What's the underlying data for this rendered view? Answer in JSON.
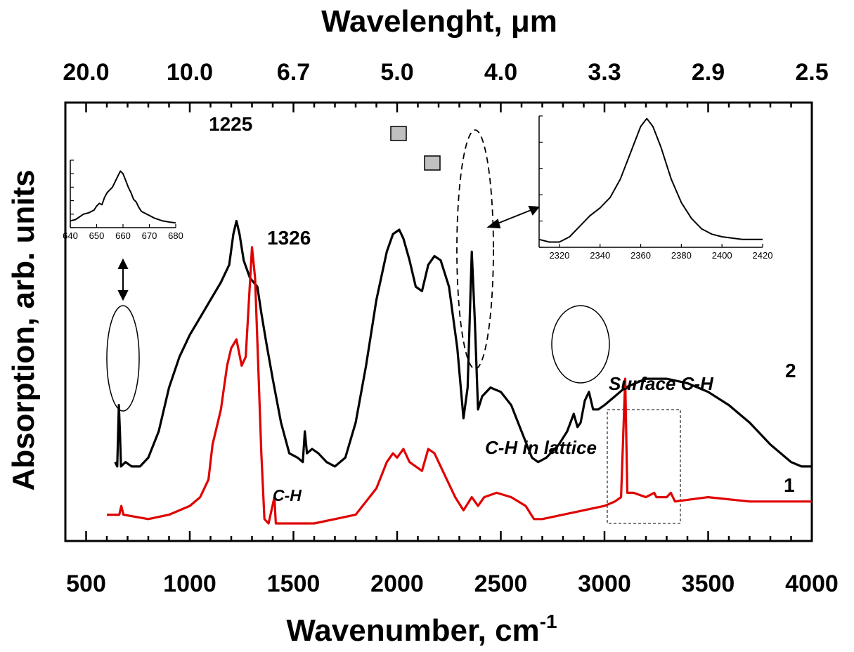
{
  "chart_data": {
    "type": "line",
    "title": "",
    "xlabel": "Wavenumber, cm",
    "xlabel_sup": "-1",
    "ylabel": "Absorption, arb. units",
    "top_axis_label": "Wavelenght, μm",
    "xlim": [
      400,
      4000
    ],
    "x_ticks": [
      500,
      1000,
      1500,
      2000,
      2500,
      3000,
      3500,
      4000
    ],
    "top_ticks": [
      {
        "label": "20.0",
        "at_wavenumber": 500
      },
      {
        "label": "10.0",
        "at_wavenumber": 1000
      },
      {
        "label": "6.7",
        "at_wavenumber": 1500
      },
      {
        "label": "5.0",
        "at_wavenumber": 2000
      },
      {
        "label": "4.0",
        "at_wavenumber": 2500
      },
      {
        "label": "3.3",
        "at_wavenumber": 3000
      },
      {
        "label": "2.9",
        "at_wavenumber": 3500
      },
      {
        "label": "2.5",
        "at_wavenumber": 4000
      }
    ],
    "ylim": [
      0,
      1
    ],
    "grid": false,
    "series": [
      {
        "name": "2",
        "color": "#000000",
        "points": [
          [
            640,
            0.18
          ],
          [
            650,
            0.17
          ],
          [
            658,
            0.31
          ],
          [
            663,
            0.25
          ],
          [
            668,
            0.17
          ],
          [
            690,
            0.18
          ],
          [
            720,
            0.17
          ],
          [
            760,
            0.17
          ],
          [
            800,
            0.19
          ],
          [
            850,
            0.25
          ],
          [
            900,
            0.35
          ],
          [
            950,
            0.42
          ],
          [
            1000,
            0.47
          ],
          [
            1050,
            0.51
          ],
          [
            1100,
            0.55
          ],
          [
            1150,
            0.59
          ],
          [
            1190,
            0.63
          ],
          [
            1210,
            0.7
          ],
          [
            1225,
            0.73
          ],
          [
            1240,
            0.7
          ],
          [
            1260,
            0.64
          ],
          [
            1290,
            0.6
          ],
          [
            1326,
            0.58
          ],
          [
            1345,
            0.52
          ],
          [
            1370,
            0.45
          ],
          [
            1400,
            0.37
          ],
          [
            1440,
            0.27
          ],
          [
            1480,
            0.2
          ],
          [
            1520,
            0.19
          ],
          [
            1545,
            0.18
          ],
          [
            1555,
            0.25
          ],
          [
            1565,
            0.2
          ],
          [
            1590,
            0.21
          ],
          [
            1620,
            0.2
          ],
          [
            1660,
            0.18
          ],
          [
            1700,
            0.17
          ],
          [
            1750,
            0.19
          ],
          [
            1800,
            0.27
          ],
          [
            1850,
            0.4
          ],
          [
            1900,
            0.55
          ],
          [
            1950,
            0.66
          ],
          [
            1980,
            0.7
          ],
          [
            2010,
            0.71
          ],
          [
            2030,
            0.69
          ],
          [
            2060,
            0.64
          ],
          [
            2090,
            0.58
          ],
          [
            2120,
            0.57
          ],
          [
            2150,
            0.63
          ],
          [
            2180,
            0.65
          ],
          [
            2210,
            0.64
          ],
          [
            2250,
            0.58
          ],
          [
            2290,
            0.44
          ],
          [
            2320,
            0.28
          ],
          [
            2340,
            0.35
          ],
          [
            2360,
            0.66
          ],
          [
            2375,
            0.5
          ],
          [
            2390,
            0.3
          ],
          [
            2410,
            0.33
          ],
          [
            2450,
            0.35
          ],
          [
            2500,
            0.34
          ],
          [
            2550,
            0.31
          ],
          [
            2600,
            0.25
          ],
          [
            2650,
            0.19
          ],
          [
            2680,
            0.18
          ],
          [
            2720,
            0.19
          ],
          [
            2780,
            0.22
          ],
          [
            2820,
            0.25
          ],
          [
            2852,
            0.29
          ],
          [
            2870,
            0.26
          ],
          [
            2885,
            0.27
          ],
          [
            2905,
            0.32
          ],
          [
            2925,
            0.34
          ],
          [
            2945,
            0.3
          ],
          [
            2970,
            0.3
          ],
          [
            3000,
            0.31
          ],
          [
            3050,
            0.33
          ],
          [
            3100,
            0.35
          ],
          [
            3200,
            0.37
          ],
          [
            3300,
            0.37
          ],
          [
            3400,
            0.36
          ],
          [
            3500,
            0.34
          ],
          [
            3600,
            0.31
          ],
          [
            3700,
            0.27
          ],
          [
            3800,
            0.22
          ],
          [
            3900,
            0.18
          ],
          [
            3950,
            0.17
          ],
          [
            4000,
            0.17
          ]
        ]
      },
      {
        "name": "1",
        "color": "#e00000",
        "points": [
          [
            600,
            0.06
          ],
          [
            660,
            0.06
          ],
          [
            670,
            0.08
          ],
          [
            680,
            0.06
          ],
          [
            800,
            0.05
          ],
          [
            900,
            0.06
          ],
          [
            1000,
            0.08
          ],
          [
            1050,
            0.1
          ],
          [
            1090,
            0.14
          ],
          [
            1110,
            0.22
          ],
          [
            1150,
            0.3
          ],
          [
            1180,
            0.4
          ],
          [
            1200,
            0.44
          ],
          [
            1225,
            0.46
          ],
          [
            1250,
            0.4
          ],
          [
            1270,
            0.42
          ],
          [
            1300,
            0.67
          ],
          [
            1315,
            0.6
          ],
          [
            1330,
            0.4
          ],
          [
            1345,
            0.2
          ],
          [
            1360,
            0.05
          ],
          [
            1380,
            0.04
          ],
          [
            1408,
            0.1
          ],
          [
            1415,
            0.04
          ],
          [
            1500,
            0.04
          ],
          [
            1600,
            0.04
          ],
          [
            1700,
            0.05
          ],
          [
            1800,
            0.06
          ],
          [
            1900,
            0.12
          ],
          [
            1950,
            0.18
          ],
          [
            1980,
            0.2
          ],
          [
            2000,
            0.19
          ],
          [
            2030,
            0.21
          ],
          [
            2060,
            0.18
          ],
          [
            2090,
            0.17
          ],
          [
            2120,
            0.16
          ],
          [
            2150,
            0.21
          ],
          [
            2180,
            0.2
          ],
          [
            2220,
            0.16
          ],
          [
            2280,
            0.1
          ],
          [
            2320,
            0.07
          ],
          [
            2360,
            0.1
          ],
          [
            2390,
            0.08
          ],
          [
            2420,
            0.1
          ],
          [
            2480,
            0.11
          ],
          [
            2550,
            0.1
          ],
          [
            2620,
            0.08
          ],
          [
            2660,
            0.05
          ],
          [
            2700,
            0.05
          ],
          [
            2800,
            0.06
          ],
          [
            2900,
            0.07
          ],
          [
            3000,
            0.08
          ],
          [
            3050,
            0.09
          ],
          [
            3080,
            0.1
          ],
          [
            3100,
            0.37
          ],
          [
            3110,
            0.11
          ],
          [
            3140,
            0.11
          ],
          [
            3200,
            0.1
          ],
          [
            3240,
            0.11
          ],
          [
            3250,
            0.1
          ],
          [
            3300,
            0.1
          ],
          [
            3320,
            0.11
          ],
          [
            3340,
            0.09
          ],
          [
            3500,
            0.1
          ],
          [
            3700,
            0.09
          ],
          [
            3800,
            0.09
          ],
          [
            3900,
            0.09
          ],
          [
            4000,
            0.09
          ]
        ]
      }
    ],
    "series_labels": [
      {
        "text": "2",
        "series": "2"
      },
      {
        "text": "1",
        "series": "1"
      }
    ],
    "annotations": [
      {
        "text": "1225",
        "style": "bold"
      },
      {
        "text": "1326",
        "style": "bold"
      },
      {
        "text": "C-H",
        "style": "bold-italic"
      },
      {
        "text": "C-H in lattice",
        "style": "bold-italic"
      },
      {
        "text": "Surface C-H",
        "style": "bold-italic"
      }
    ],
    "insets": [
      {
        "id": "left",
        "xlim": [
          640,
          680
        ],
        "x_ticks": [
          "640",
          "650",
          "660",
          "670",
          "680"
        ],
        "points": [
          [
            640,
            0.1
          ],
          [
            642,
            0.12
          ],
          [
            645,
            0.2
          ],
          [
            647,
            0.22
          ],
          [
            649,
            0.26
          ],
          [
            650,
            0.32
          ],
          [
            651,
            0.36
          ],
          [
            652,
            0.34
          ],
          [
            653,
            0.45
          ],
          [
            654,
            0.52
          ],
          [
            655,
            0.56
          ],
          [
            656,
            0.6
          ],
          [
            657,
            0.68
          ],
          [
            658,
            0.76
          ],
          [
            659,
            0.84
          ],
          [
            660,
            0.8
          ],
          [
            661,
            0.7
          ],
          [
            662,
            0.6
          ],
          [
            663,
            0.52
          ],
          [
            664,
            0.42
          ],
          [
            665,
            0.38
          ],
          [
            666,
            0.3
          ],
          [
            667,
            0.24
          ],
          [
            668,
            0.22
          ],
          [
            670,
            0.18
          ],
          [
            672,
            0.14
          ],
          [
            675,
            0.1
          ],
          [
            678,
            0.08
          ],
          [
            680,
            0.07
          ]
        ]
      },
      {
        "id": "right",
        "xlim": [
          2310,
          2420
        ],
        "x_ticks": [
          "2320",
          "2340",
          "2360",
          "2380",
          "2400",
          "2420"
        ],
        "points": [
          [
            2310,
            0.06
          ],
          [
            2315,
            0.04
          ],
          [
            2320,
            0.04
          ],
          [
            2325,
            0.08
          ],
          [
            2330,
            0.16
          ],
          [
            2335,
            0.24
          ],
          [
            2340,
            0.3
          ],
          [
            2345,
            0.38
          ],
          [
            2350,
            0.52
          ],
          [
            2355,
            0.72
          ],
          [
            2360,
            0.92
          ],
          [
            2363,
            0.98
          ],
          [
            2366,
            0.92
          ],
          [
            2370,
            0.76
          ],
          [
            2375,
            0.52
          ],
          [
            2380,
            0.34
          ],
          [
            2385,
            0.22
          ],
          [
            2390,
            0.14
          ],
          [
            2395,
            0.1
          ],
          [
            2400,
            0.08
          ],
          [
            2405,
            0.07
          ],
          [
            2410,
            0.06
          ],
          [
            2415,
            0.06
          ],
          [
            2420,
            0.06
          ]
        ]
      }
    ]
  }
}
